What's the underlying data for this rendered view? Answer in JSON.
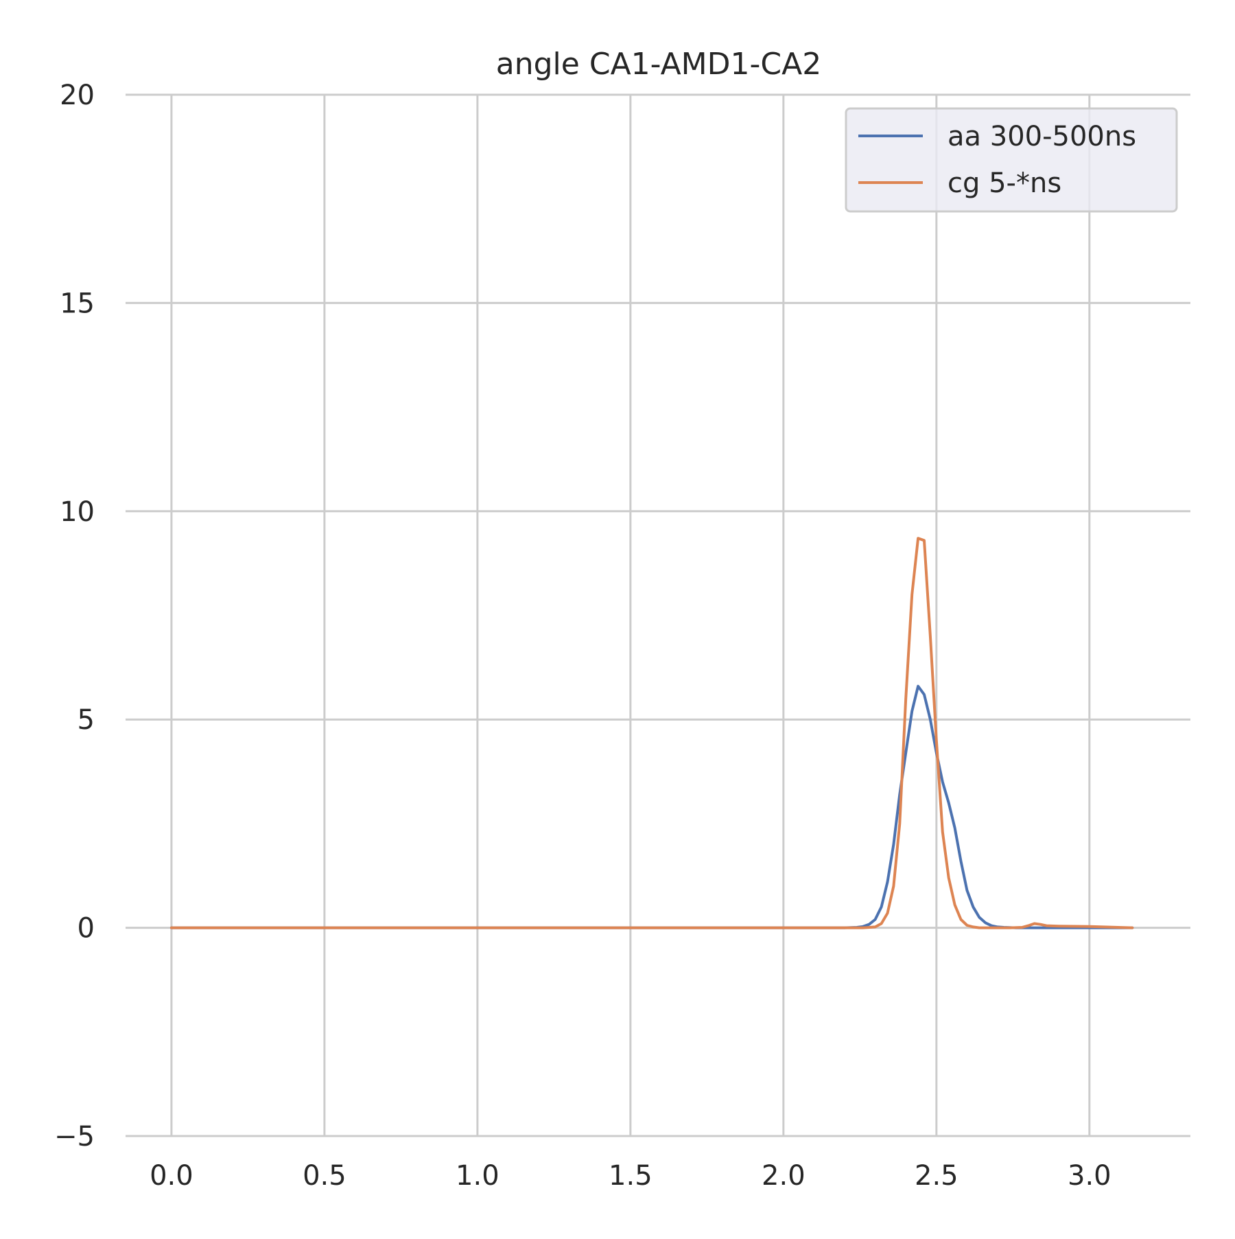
{
  "chart_data": {
    "type": "line",
    "title": "angle CA1-AMD1-CA2",
    "xlabel": "",
    "ylabel": "",
    "xlim": [
      -0.15,
      3.33
    ],
    "ylim": [
      -5,
      20
    ],
    "xticks": [
      0.0,
      0.5,
      1.0,
      1.5,
      2.0,
      2.5,
      3.0
    ],
    "xtick_labels": [
      "0.0",
      "0.5",
      "1.0",
      "1.5",
      "2.0",
      "2.5",
      "3.0"
    ],
    "yticks": [
      -5,
      0,
      5,
      10,
      15,
      20
    ],
    "ytick_labels": [
      "−5",
      "0",
      "5",
      "10",
      "15",
      "20"
    ],
    "grid": true,
    "legend_position": "top-right",
    "series": [
      {
        "name": "aa 300-500ns",
        "color": "#4c72b0",
        "x": [
          0.0,
          0.5,
          1.0,
          1.5,
          2.0,
          2.2,
          2.24,
          2.26,
          2.28,
          2.3,
          2.32,
          2.34,
          2.36,
          2.38,
          2.4,
          2.42,
          2.44,
          2.46,
          2.48,
          2.5,
          2.52,
          2.54,
          2.56,
          2.58,
          2.6,
          2.62,
          2.64,
          2.66,
          2.68,
          2.7,
          2.72,
          2.76,
          2.8,
          3.0,
          3.14
        ],
        "y": [
          0,
          0,
          0,
          0,
          0,
          0,
          0.01,
          0.03,
          0.08,
          0.2,
          0.5,
          1.1,
          2.0,
          3.2,
          4.2,
          5.2,
          5.8,
          5.6,
          5.0,
          4.2,
          3.5,
          3.0,
          2.4,
          1.6,
          0.9,
          0.5,
          0.25,
          0.12,
          0.05,
          0.02,
          0.01,
          0,
          0,
          0,
          0
        ]
      },
      {
        "name": "cg 5-*ns",
        "color": "#dd8452",
        "x": [
          0.0,
          0.5,
          1.0,
          1.5,
          2.0,
          2.2,
          2.26,
          2.3,
          2.32,
          2.34,
          2.36,
          2.38,
          2.4,
          2.42,
          2.44,
          2.46,
          2.48,
          2.5,
          2.52,
          2.54,
          2.56,
          2.58,
          2.6,
          2.62,
          2.64,
          2.68,
          2.74,
          2.78,
          2.8,
          2.82,
          2.84,
          2.86,
          2.9,
          3.0,
          3.14
        ],
        "y": [
          0,
          0,
          0,
          0,
          0,
          0,
          0,
          0.02,
          0.1,
          0.35,
          1.0,
          2.5,
          5.5,
          8.0,
          9.35,
          9.3,
          7.0,
          4.5,
          2.3,
          1.2,
          0.55,
          0.2,
          0.06,
          0.02,
          0.0,
          0.0,
          0.0,
          0.01,
          0.05,
          0.1,
          0.08,
          0.05,
          0.04,
          0.03,
          0.0
        ]
      }
    ]
  }
}
